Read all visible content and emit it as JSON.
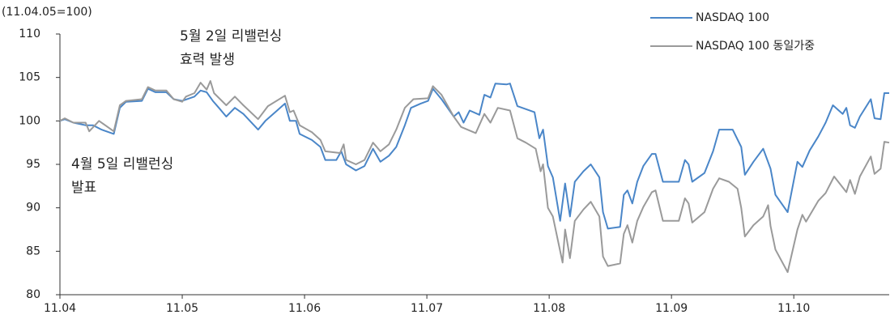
{
  "chart_data": {
    "type": "line",
    "y_label": "(11.04.05=100)",
    "annotations": [
      {
        "lines": [
          "5월 2일 리밸런싱",
          "효력 발생"
        ]
      },
      {
        "lines": [
          "4월 5일 리밸런싱",
          "발표"
        ]
      }
    ],
    "xlim": [
      4,
      10.78
    ],
    "xticks": [
      {
        "value": 4,
        "label": "11.04"
      },
      {
        "value": 5,
        "label": "11.05"
      },
      {
        "value": 6,
        "label": "11.06"
      },
      {
        "value": 7,
        "label": "11.07"
      },
      {
        "value": 8,
        "label": "11.08"
      },
      {
        "value": 9,
        "label": "11.09"
      },
      {
        "value": 10,
        "label": "11.10"
      }
    ],
    "ylim": [
      80,
      110
    ],
    "yticks": [
      80,
      85,
      90,
      95,
      100,
      105,
      110
    ],
    "grid": false,
    "legend": "top-right",
    "series": [
      {
        "name": "NASDAQ 100",
        "color": "#4a86c8",
        "x": [
          4.0,
          4.04,
          4.11,
          4.21,
          4.27,
          4.34,
          4.44,
          4.49,
          4.54,
          4.67,
          4.72,
          4.78,
          4.87,
          4.93,
          5.0,
          5.1,
          5.15,
          5.2,
          5.25,
          5.3,
          5.36,
          5.43,
          5.5,
          5.62,
          5.68,
          5.76,
          5.84,
          5.88,
          5.93,
          5.96,
          6.06,
          6.13,
          6.17,
          6.26,
          6.3,
          6.34,
          6.42,
          6.49,
          6.56,
          6.62,
          6.69,
          6.75,
          6.82,
          6.87,
          6.95,
          7.01,
          7.05,
          7.12,
          7.22,
          7.26,
          7.3,
          7.35,
          7.43,
          7.47,
          7.52,
          7.56,
          7.65,
          7.68,
          7.74,
          7.78,
          7.88,
          7.92,
          7.95,
          7.99,
          8.03,
          8.09,
          8.13,
          8.17,
          8.21,
          8.28,
          8.34,
          8.41,
          8.44,
          8.48,
          8.58,
          8.61,
          8.64,
          8.68,
          8.72,
          8.77,
          8.84,
          8.87,
          8.93,
          9.06,
          9.11,
          9.14,
          9.17,
          9.27,
          9.34,
          9.39,
          9.47,
          9.5,
          9.57,
          9.6,
          9.67,
          9.75,
          9.81,
          9.85,
          9.95,
          10.03,
          10.07,
          10.13,
          10.2,
          10.26,
          10.32,
          10.4,
          10.43,
          10.46,
          10.5,
          10.54,
          10.63,
          10.66,
          10.71,
          10.74,
          10.78
        ],
        "values": [
          100,
          100.2,
          99.8,
          99.5,
          99.5,
          99,
          98.5,
          101.5,
          102.2,
          102.3,
          103.7,
          103.3,
          103.3,
          102.5,
          102.3,
          102.8,
          103.5,
          103.3,
          102.3,
          101.5,
          100.5,
          101.5,
          100.8,
          99,
          100,
          101,
          102,
          100,
          100,
          98.5,
          97.8,
          97,
          95.5,
          95.5,
          96.5,
          95,
          94.3,
          94.8,
          96.8,
          95.3,
          96,
          97,
          99.5,
          101.5,
          102,
          102.3,
          103.7,
          102.5,
          100.5,
          101,
          99.8,
          101.2,
          100.7,
          103,
          102.7,
          104.3,
          104.2,
          104.3,
          101.7,
          101.5,
          101,
          98,
          99,
          94.8,
          93.5,
          88.5,
          92.8,
          89,
          93,
          94.2,
          95,
          93.5,
          89.5,
          87.6,
          87.8,
          91.5,
          92,
          90.5,
          93,
          94.8,
          96.2,
          96.2,
          93,
          93,
          95.5,
          95,
          93,
          94,
          96.5,
          99,
          99,
          99,
          97,
          93.8,
          95.3,
          96.8,
          94.5,
          91.5,
          89.5,
          95.3,
          94.7,
          96.6,
          98.2,
          99.8,
          101.8,
          100.8,
          101.5,
          99.5,
          99.2,
          100.5,
          102.5,
          100.3,
          100.2,
          103.2,
          103.2
        ]
      },
      {
        "name": "NASDAQ 100 동일가중",
        "color": "#9a9a9a",
        "x": [
          4.0,
          4.04,
          4.11,
          4.21,
          4.24,
          4.32,
          4.44,
          4.49,
          4.54,
          4.67,
          4.72,
          4.78,
          4.87,
          4.93,
          5.0,
          5.03,
          5.1,
          5.15,
          5.2,
          5.23,
          5.26,
          5.36,
          5.43,
          5.5,
          5.62,
          5.7,
          5.84,
          5.88,
          5.91,
          5.96,
          6.06,
          6.13,
          6.17,
          6.29,
          6.32,
          6.34,
          6.42,
          6.49,
          6.56,
          6.59,
          6.62,
          6.69,
          6.75,
          6.82,
          6.89,
          7.01,
          7.05,
          7.12,
          7.22,
          7.28,
          7.4,
          7.47,
          7.52,
          7.58,
          7.68,
          7.74,
          7.81,
          7.89,
          7.93,
          7.95,
          7.99,
          8.03,
          8.11,
          8.13,
          8.17,
          8.21,
          8.28,
          8.34,
          8.41,
          8.44,
          8.48,
          8.58,
          8.61,
          8.64,
          8.68,
          8.72,
          8.77,
          8.84,
          8.87,
          8.93,
          9.06,
          9.11,
          9.14,
          9.17,
          9.27,
          9.34,
          9.39,
          9.47,
          9.54,
          9.57,
          9.6,
          9.67,
          9.75,
          9.79,
          9.81,
          9.85,
          9.95,
          10.03,
          10.07,
          10.1,
          10.2,
          10.26,
          10.33,
          10.43,
          10.46,
          10.5,
          10.54,
          10.63,
          10.66,
          10.71,
          10.74,
          10.78
        ],
        "values": [
          100,
          100.3,
          99.8,
          99.8,
          98.8,
          100,
          98.8,
          101.8,
          102.3,
          102.5,
          103.9,
          103.5,
          103.5,
          102.5,
          102.2,
          102.8,
          103.2,
          104.4,
          103.6,
          104.6,
          103.2,
          101.8,
          102.8,
          101.8,
          100.2,
          101.7,
          102.9,
          101,
          101.2,
          99.5,
          98.7,
          97.8,
          96.5,
          96.3,
          97.3,
          95.5,
          95,
          95.5,
          97.5,
          97,
          96.5,
          97.3,
          99,
          101.5,
          102.5,
          102.6,
          104,
          103,
          100.5,
          99.3,
          98.6,
          100.8,
          99.8,
          101.5,
          101.2,
          98,
          97.5,
          96.8,
          94.2,
          95,
          90,
          89,
          83.7,
          87.5,
          84.2,
          88.5,
          89.8,
          90.7,
          89,
          84.4,
          83.3,
          83.6,
          87,
          88,
          86,
          88.5,
          90.1,
          91.8,
          92,
          88.5,
          88.5,
          91.1,
          90.5,
          88.3,
          89.5,
          92.2,
          93.4,
          93,
          92.2,
          90,
          86.7,
          88,
          89,
          90.3,
          87.9,
          85.2,
          82.6,
          87.5,
          89.2,
          88.4,
          90.8,
          91.7,
          93.6,
          91.8,
          93.2,
          91.6,
          93.6,
          95.9,
          93.9,
          94.5,
          97.6,
          97.5
        ]
      }
    ]
  }
}
